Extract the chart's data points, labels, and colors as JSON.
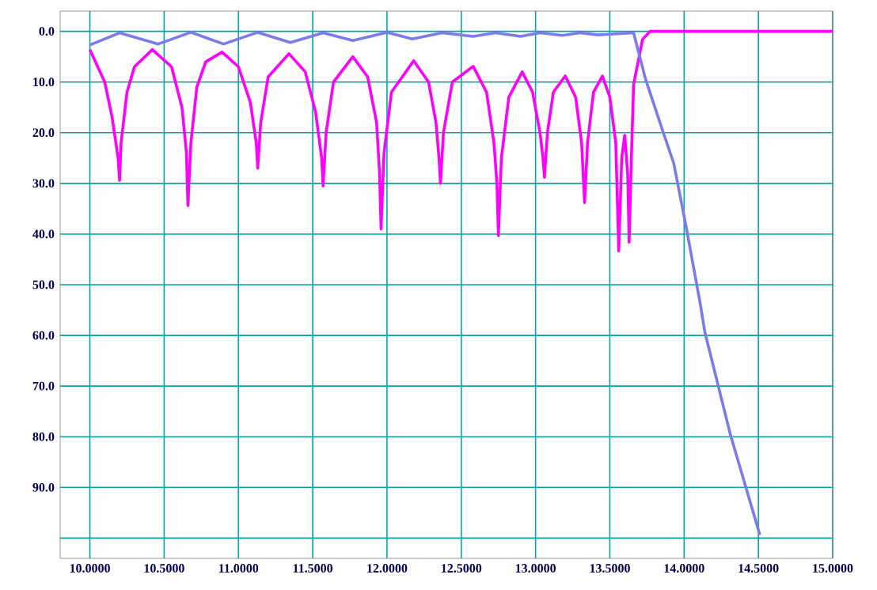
{
  "chart_data": {
    "type": "line",
    "xlim": [
      9.8,
      15.0
    ],
    "ylim": [
      104,
      -4
    ],
    "xticks": [
      {
        "value": 10.0,
        "label": "10.0000"
      },
      {
        "value": 10.5,
        "label": "10.5000"
      },
      {
        "value": 11.0,
        "label": "11.0000"
      },
      {
        "value": 11.5,
        "label": "11.5000"
      },
      {
        "value": 12.0,
        "label": "12.0000"
      },
      {
        "value": 12.5,
        "label": "12.5000"
      },
      {
        "value": 13.0,
        "label": "13.0000"
      },
      {
        "value": 13.5,
        "label": "13.5000"
      },
      {
        "value": 14.0,
        "label": "14.0000"
      },
      {
        "value": 14.5,
        "label": "14.5000"
      },
      {
        "value": 15.0,
        "label": "15.0000"
      }
    ],
    "yticks": [
      {
        "value": 0,
        "label": "0.0"
      },
      {
        "value": 10,
        "label": "10.0"
      },
      {
        "value": 20,
        "label": "20.0"
      },
      {
        "value": 30,
        "label": "30.0"
      },
      {
        "value": 40,
        "label": "40.0"
      },
      {
        "value": 50,
        "label": "50.0"
      },
      {
        "value": 60,
        "label": "60.0"
      },
      {
        "value": 70,
        "label": "70.0"
      },
      {
        "value": 80,
        "label": "80.0"
      },
      {
        "value": 90,
        "label": "90.0"
      },
      {
        "value": 100,
        "label": null
      }
    ],
    "grid": true,
    "line_style": "solid",
    "series": [
      {
        "color": "#ff00ff",
        "x": [
          10.0,
          10.1,
          10.15,
          10.19,
          10.2,
          10.21,
          10.25,
          10.3,
          10.42,
          10.55,
          10.62,
          10.65,
          10.66,
          10.68,
          10.72,
          10.78,
          10.89,
          11.0,
          11.08,
          11.12,
          11.13,
          11.15,
          11.2,
          11.34,
          11.45,
          11.52,
          11.56,
          11.57,
          11.59,
          11.64,
          11.77,
          11.87,
          11.93,
          11.95,
          11.96,
          11.98,
          12.03,
          12.18,
          12.28,
          12.33,
          12.35,
          12.36,
          12.38,
          12.44,
          12.58,
          12.67,
          12.72,
          12.74,
          12.75,
          12.77,
          12.82,
          12.91,
          12.98,
          13.03,
          13.05,
          13.06,
          13.08,
          13.12,
          13.2,
          13.27,
          13.31,
          13.33,
          13.35,
          13.39,
          13.45,
          13.5,
          13.54,
          13.56,
          13.58,
          13.6,
          13.62,
          13.63,
          13.645,
          13.66,
          13.72,
          13.77,
          15.0
        ],
        "values": [
          3.6,
          10,
          17,
          25,
          29.4,
          22,
          12,
          7,
          3.6,
          7,
          15,
          24,
          34.4,
          22,
          11,
          6,
          4.1,
          7,
          14,
          22,
          27,
          18,
          9,
          4.4,
          8,
          16,
          25,
          30.5,
          20,
          10,
          5,
          9,
          18,
          28,
          39,
          24,
          12,
          5.8,
          10,
          18,
          25,
          30,
          20,
          10,
          6.9,
          12,
          22,
          30,
          40.3,
          25,
          13,
          8,
          12,
          20,
          25,
          28.8,
          20,
          12,
          8.8,
          13,
          22,
          33.8,
          22,
          12,
          8.8,
          13,
          22,
          43.3,
          25,
          20.5,
          28,
          41.6,
          25,
          10.5,
          1.6,
          0,
          0
        ]
      },
      {
        "color": "#7b7bee",
        "x": [
          10.0,
          10.2,
          10.46,
          10.68,
          10.9,
          11.13,
          11.35,
          11.57,
          11.77,
          12.0,
          12.17,
          12.37,
          12.58,
          12.73,
          12.9,
          13.03,
          13.18,
          13.3,
          13.42,
          13.66,
          13.74,
          13.86,
          13.93,
          14.01,
          14.11,
          14.14,
          14.23,
          14.31,
          14.41,
          14.51
        ],
        "values": [
          2.7,
          0.3,
          2.5,
          0.2,
          2.5,
          0.2,
          2.2,
          0.3,
          1.8,
          0.2,
          1.5,
          0.3,
          1.0,
          0.3,
          1.0,
          0.3,
          0.8,
          0.3,
          0.7,
          0.3,
          9.4,
          20,
          26,
          38,
          54,
          59.4,
          70,
          79.4,
          89.4,
          99.4
        ]
      }
    ]
  }
}
